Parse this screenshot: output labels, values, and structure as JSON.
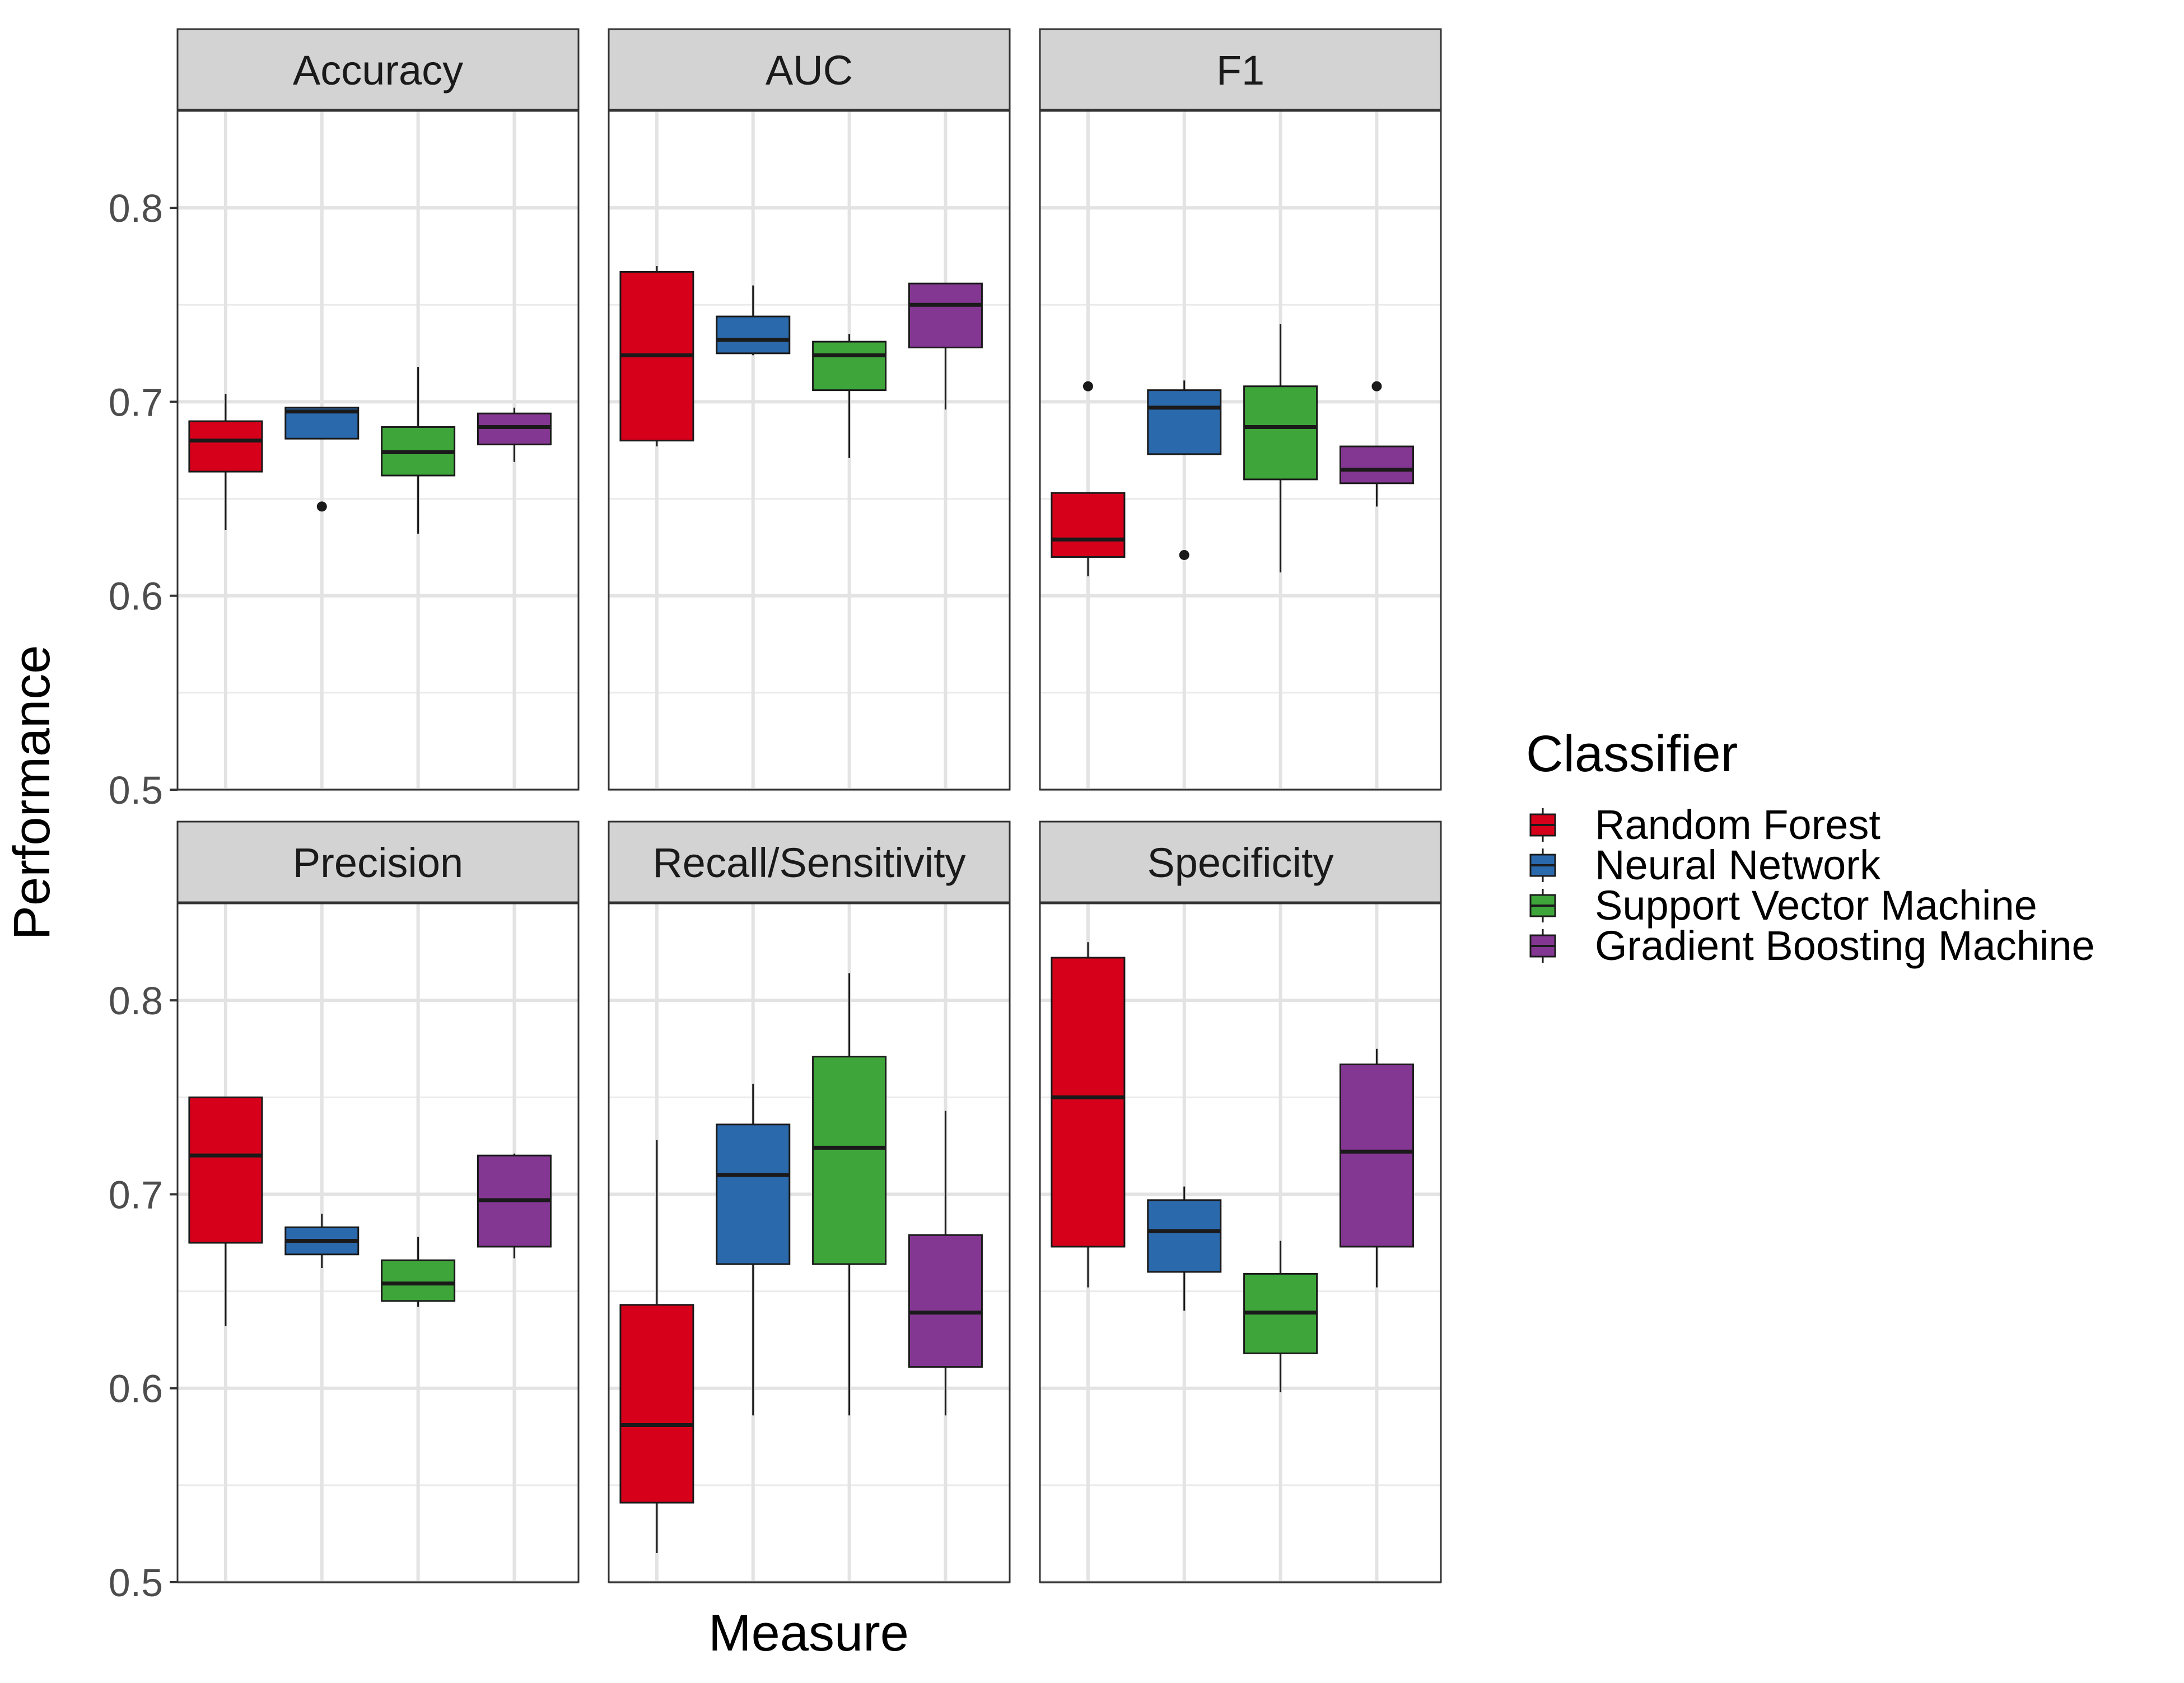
{
  "chart_data": {
    "type": "box",
    "layout": "facet-grid",
    "facet_rows": 2,
    "facet_cols": 3,
    "xlabel": "Measure",
    "ylabel": "Performance",
    "ylim": [
      0.5,
      0.85
    ],
    "y_ticks": [
      0.5,
      0.6,
      0.7,
      0.8
    ],
    "y_tick_labels": [
      "0.5",
      "0.6",
      "0.7",
      "0.8"
    ],
    "grid": true,
    "legend": {
      "title": "Classifier",
      "placement": "right",
      "entries": [
        {
          "name": "Random Forest",
          "color": "#d7001a"
        },
        {
          "name": "Neural Network",
          "color": "#2b69ad"
        },
        {
          "name": "Support Vector Machine",
          "color": "#3ea53a"
        },
        {
          "name": "Gradient Boosting Machine",
          "color": "#843792"
        }
      ]
    },
    "facets": [
      {
        "title": "Accuracy",
        "boxes": [
          {
            "series": "Random Forest",
            "min": 0.634,
            "q1": 0.664,
            "median": 0.68,
            "q3": 0.69,
            "max": 0.704,
            "outliers": []
          },
          {
            "series": "Neural Network",
            "min": 0.681,
            "q1": 0.681,
            "median": 0.695,
            "q3": 0.697,
            "max": 0.697,
            "outliers": [
              0.646
            ]
          },
          {
            "series": "Support Vector Machine",
            "min": 0.632,
            "q1": 0.662,
            "median": 0.674,
            "q3": 0.687,
            "max": 0.718,
            "outliers": []
          },
          {
            "series": "Gradient Boosting Machine",
            "min": 0.669,
            "q1": 0.678,
            "median": 0.687,
            "q3": 0.694,
            "max": 0.697,
            "outliers": []
          }
        ]
      },
      {
        "title": "AUC",
        "boxes": [
          {
            "series": "Random Forest",
            "min": 0.677,
            "q1": 0.68,
            "median": 0.724,
            "q3": 0.767,
            "max": 0.77,
            "outliers": []
          },
          {
            "series": "Neural Network",
            "min": 0.724,
            "q1": 0.725,
            "median": 0.732,
            "q3": 0.744,
            "max": 0.76,
            "outliers": []
          },
          {
            "series": "Support Vector Machine",
            "min": 0.671,
            "q1": 0.706,
            "median": 0.724,
            "q3": 0.731,
            "max": 0.735,
            "outliers": []
          },
          {
            "series": "Gradient Boosting Machine",
            "min": 0.696,
            "q1": 0.728,
            "median": 0.75,
            "q3": 0.761,
            "max": 0.761,
            "outliers": []
          }
        ]
      },
      {
        "title": "F1",
        "boxes": [
          {
            "series": "Random Forest",
            "min": 0.61,
            "q1": 0.62,
            "median": 0.629,
            "q3": 0.653,
            "max": 0.653,
            "outliers": [
              0.708
            ]
          },
          {
            "series": "Neural Network",
            "min": 0.673,
            "q1": 0.673,
            "median": 0.697,
            "q3": 0.706,
            "max": 0.711,
            "outliers": [
              0.621
            ]
          },
          {
            "series": "Support Vector Machine",
            "min": 0.612,
            "q1": 0.66,
            "median": 0.687,
            "q3": 0.708,
            "max": 0.74,
            "outliers": []
          },
          {
            "series": "Gradient Boosting Machine",
            "min": 0.646,
            "q1": 0.658,
            "median": 0.665,
            "q3": 0.677,
            "max": 0.677,
            "outliers": [
              0.708
            ]
          }
        ]
      },
      {
        "title": "Precision",
        "boxes": [
          {
            "series": "Random Forest",
            "min": 0.632,
            "q1": 0.675,
            "median": 0.72,
            "q3": 0.75,
            "max": 0.75,
            "outliers": []
          },
          {
            "series": "Neural Network",
            "min": 0.662,
            "q1": 0.669,
            "median": 0.676,
            "q3": 0.683,
            "max": 0.69,
            "outliers": []
          },
          {
            "series": "Support Vector Machine",
            "min": 0.642,
            "q1": 0.645,
            "median": 0.654,
            "q3": 0.666,
            "max": 0.678,
            "outliers": []
          },
          {
            "series": "Gradient Boosting Machine",
            "min": 0.667,
            "q1": 0.673,
            "median": 0.697,
            "q3": 0.72,
            "max": 0.721,
            "outliers": []
          }
        ]
      },
      {
        "title": "Recall/Sensitivity",
        "boxes": [
          {
            "series": "Random Forest",
            "min": 0.515,
            "q1": 0.541,
            "median": 0.581,
            "q3": 0.643,
            "max": 0.728,
            "outliers": []
          },
          {
            "series": "Neural Network",
            "min": 0.586,
            "q1": 0.664,
            "median": 0.71,
            "q3": 0.736,
            "max": 0.757,
            "outliers": []
          },
          {
            "series": "Support Vector Machine",
            "min": 0.586,
            "q1": 0.664,
            "median": 0.724,
            "q3": 0.771,
            "max": 0.814,
            "outliers": []
          },
          {
            "series": "Gradient Boosting Machine",
            "min": 0.586,
            "q1": 0.611,
            "median": 0.639,
            "q3": 0.679,
            "max": 0.743,
            "outliers": []
          }
        ]
      },
      {
        "title": "Specificity",
        "boxes": [
          {
            "series": "Random Forest",
            "min": 0.652,
            "q1": 0.673,
            "median": 0.75,
            "q3": 0.822,
            "max": 0.83,
            "outliers": []
          },
          {
            "series": "Neural Network",
            "min": 0.64,
            "q1": 0.66,
            "median": 0.681,
            "q3": 0.697,
            "max": 0.704,
            "outliers": []
          },
          {
            "series": "Support Vector Machine",
            "min": 0.598,
            "q1": 0.618,
            "median": 0.639,
            "q3": 0.659,
            "max": 0.676,
            "outliers": []
          },
          {
            "series": "Gradient Boosting Machine",
            "min": 0.652,
            "q1": 0.673,
            "median": 0.722,
            "q3": 0.767,
            "max": 0.775,
            "outliers": []
          }
        ]
      }
    ]
  }
}
